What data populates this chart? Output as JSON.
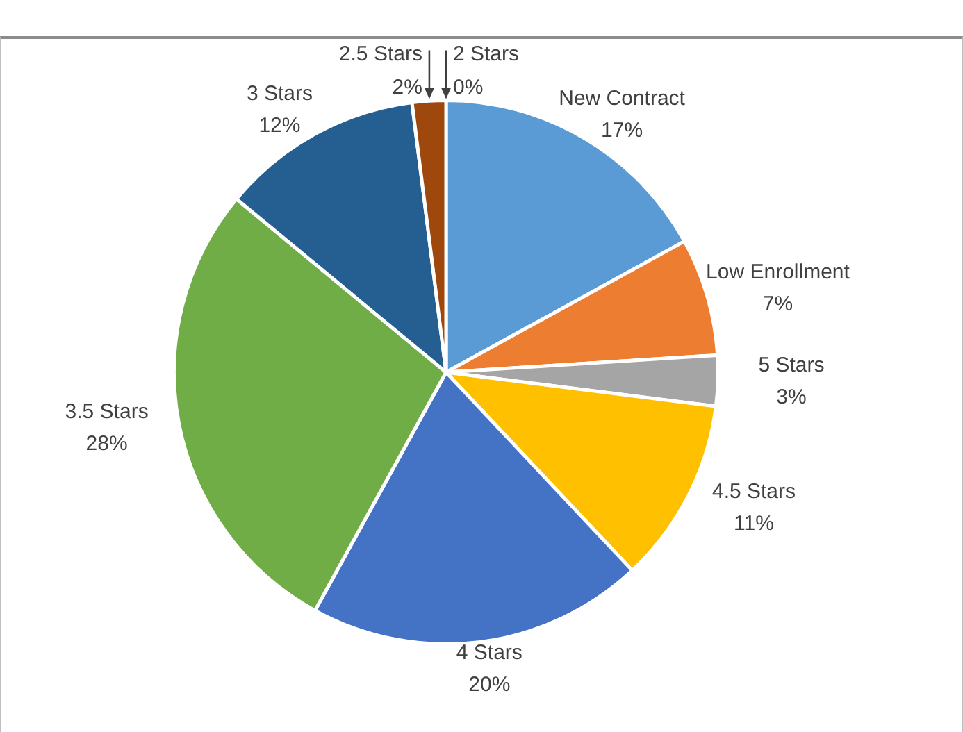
{
  "chart_data": {
    "type": "pie",
    "categories": [
      "New Contract",
      "Low Enrollment",
      "5 Stars",
      "4.5 Stars",
      "4 Stars",
      "3.5 Stars",
      "3 Stars",
      "2.5 Stars",
      "2 Stars"
    ],
    "values": [
      17,
      7,
      3,
      11,
      20,
      28,
      12,
      2,
      0
    ],
    "colors": [
      "#5b9bd5",
      "#ed7d31",
      "#a5a5a5",
      "#ffc000",
      "#4472c4",
      "#70ad47",
      "#255e91",
      "#9e480e",
      "#7f7f7f"
    ],
    "value_labels": [
      "17%",
      "7%",
      "3%",
      "11%",
      "20%",
      "28%",
      "12%",
      "2%",
      "0%"
    ],
    "legend": false
  }
}
